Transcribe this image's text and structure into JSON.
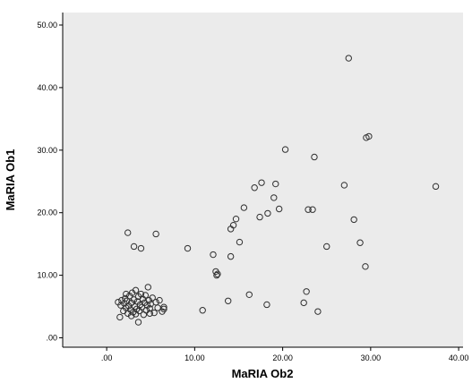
{
  "chart_data": {
    "type": "scatter",
    "title": "",
    "xlabel": "MaRIA Ob2",
    "ylabel": "MaRIA Ob1",
    "xlim": [
      -5,
      40.5
    ],
    "ylim": [
      -1.5,
      52
    ],
    "x_ticks": [
      0,
      10,
      20,
      30,
      40
    ],
    "y_ticks": [
      0,
      10,
      20,
      30,
      40,
      50
    ],
    "x_tick_labels": [
      ".00",
      "10.00",
      "20.00",
      "30.00",
      "40.00"
    ],
    "y_tick_labels": [
      ".00",
      "10.00",
      "20.00",
      "30.00",
      "40.00",
      "50.00"
    ],
    "grid": false,
    "colors": {
      "plot_background": "#ebebeb",
      "marker_stroke": "#303030",
      "axis": "#000000"
    },
    "series": [
      {
        "marker": "open-circle",
        "points": [
          [
            27.5,
            44.7
          ],
          [
            29.5,
            32.0
          ],
          [
            29.8,
            32.2
          ],
          [
            20.3,
            30.1
          ],
          [
            23.6,
            28.9
          ],
          [
            17.6,
            24.8
          ],
          [
            19.2,
            24.6
          ],
          [
            16.8,
            24.0
          ],
          [
            27.0,
            24.4
          ],
          [
            37.4,
            24.2
          ],
          [
            19.0,
            22.4
          ],
          [
            15.6,
            20.8
          ],
          [
            18.3,
            19.9
          ],
          [
            19.6,
            20.6
          ],
          [
            22.9,
            20.5
          ],
          [
            23.4,
            20.5
          ],
          [
            2.4,
            16.8
          ],
          [
            5.6,
            16.6
          ],
          [
            14.7,
            19.0
          ],
          [
            14.4,
            18.0
          ],
          [
            17.4,
            19.3
          ],
          [
            28.1,
            18.9
          ],
          [
            14.1,
            17.4
          ],
          [
            3.1,
            14.6
          ],
          [
            3.9,
            14.3
          ],
          [
            9.2,
            14.3
          ],
          [
            12.1,
            13.3
          ],
          [
            14.1,
            13.0
          ],
          [
            15.1,
            15.3
          ],
          [
            25.0,
            14.6
          ],
          [
            28.8,
            15.2
          ],
          [
            29.4,
            11.4
          ],
          [
            12.4,
            10.6
          ],
          [
            12.6,
            10.2
          ],
          [
            12.5,
            10.0
          ],
          [
            22.7,
            7.4
          ],
          [
            16.2,
            6.9
          ],
          [
            13.8,
            5.9
          ],
          [
            18.2,
            5.3
          ],
          [
            22.4,
            5.6
          ],
          [
            10.9,
            4.4
          ],
          [
            24.0,
            4.2
          ],
          [
            3.6,
            2.5
          ],
          [
            1.3,
            5.7
          ],
          [
            1.6,
            5.2
          ],
          [
            1.7,
            6.0
          ],
          [
            1.9,
            4.3
          ],
          [
            2.0,
            5.5
          ],
          [
            2.1,
            6.3
          ],
          [
            2.2,
            4.8
          ],
          [
            2.3,
            5.9
          ],
          [
            2.4,
            3.9
          ],
          [
            2.5,
            5.1
          ],
          [
            2.6,
            6.7
          ],
          [
            2.7,
            4.5
          ],
          [
            2.8,
            5.6
          ],
          [
            2.9,
            7.2
          ],
          [
            3.0,
            4.1
          ],
          [
            3.1,
            6.1
          ],
          [
            3.2,
            5.0
          ],
          [
            3.3,
            7.6
          ],
          [
            3.4,
            4.6
          ],
          [
            3.5,
            5.8
          ],
          [
            3.6,
            6.6
          ],
          [
            3.7,
            4.3
          ],
          [
            3.8,
            5.3
          ],
          [
            3.9,
            7.0
          ],
          [
            4.0,
            4.9
          ],
          [
            4.1,
            6.2
          ],
          [
            4.2,
            3.7
          ],
          [
            4.3,
            5.6
          ],
          [
            4.4,
            6.8
          ],
          [
            4.5,
            4.4
          ],
          [
            4.6,
            5.2
          ],
          [
            4.7,
            8.1
          ],
          [
            4.8,
            6.0
          ],
          [
            4.9,
            4.7
          ],
          [
            5.0,
            5.4
          ],
          [
            5.2,
            6.4
          ],
          [
            5.4,
            4.0
          ],
          [
            5.6,
            5.7
          ],
          [
            5.8,
            4.8
          ],
          [
            6.0,
            6.0
          ],
          [
            6.3,
            4.2
          ],
          [
            6.5,
            4.9
          ],
          [
            6.5,
            4.6
          ],
          [
            1.5,
            3.3
          ],
          [
            2.8,
            3.5
          ],
          [
            3.3,
            3.8
          ],
          [
            4.9,
            3.9
          ],
          [
            2.2,
            7.0
          ]
        ]
      }
    ]
  }
}
